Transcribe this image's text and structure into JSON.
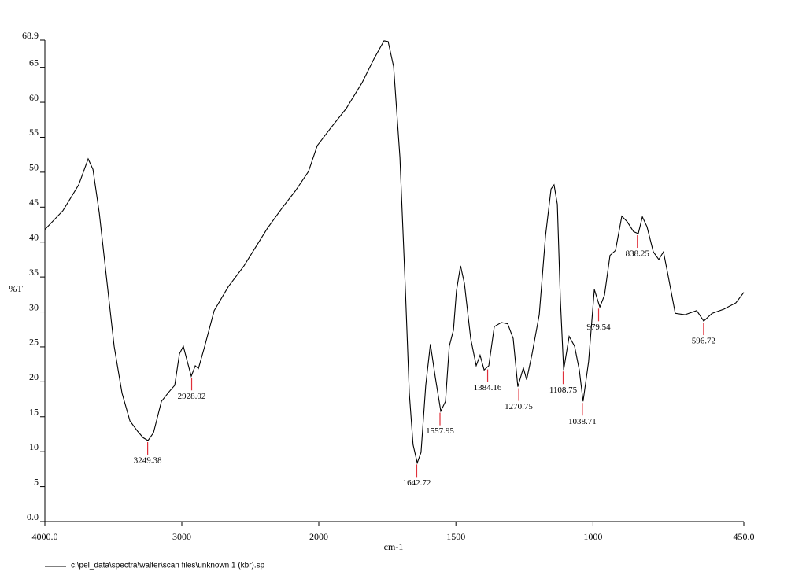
{
  "chart_data": {
    "type": "line",
    "x_label": "cm-1",
    "y_label": "%T",
    "footer": "c:\\pel_data\\spectra\\walter\\scan files\\unknown 1 (kbr).sp",
    "xlim": [
      4000,
      450
    ],
    "x_scale_break": 2000,
    "xticks": [
      {
        "value": 4000,
        "label": "4000.0"
      },
      3000,
      2000,
      1500,
      1000,
      {
        "value": 450,
        "label": "450.0"
      }
    ],
    "ylim": [
      0,
      68.9
    ],
    "yticks": [
      {
        "value": 0,
        "label": "0.0"
      },
      5,
      10,
      15,
      20,
      25,
      30,
      35,
      40,
      45,
      50,
      55,
      60,
      65,
      68.9
    ],
    "series": [
      {
        "color": "#000000",
        "x": [
          4000,
          3868,
          3753,
          3684,
          3649,
          3603,
          3552,
          3494,
          3437,
          3379,
          3322,
          3282,
          3247,
          3207,
          3149,
          3092,
          3052,
          3017,
          2989,
          2960,
          2931,
          2902,
          2879,
          2833,
          2764,
          2661,
          2546,
          2374,
          2259,
          2172,
          2075,
          2011,
          1957,
          1900,
          1842,
          1799,
          1762,
          1747,
          1727,
          1704,
          1684,
          1670,
          1656,
          1641,
          1627,
          1610,
          1593,
          1575,
          1555,
          1538,
          1524,
          1509,
          1498,
          1483,
          1469,
          1446,
          1426,
          1412,
          1397,
          1380,
          1360,
          1334,
          1311,
          1291,
          1274,
          1254,
          1242,
          1222,
          1196,
          1173,
          1153,
          1142,
          1130,
          1119,
          1107,
          1087,
          1067,
          1050,
          1036,
          1016,
          995,
          975,
          958,
          938,
          918,
          895,
          875,
          852,
          835,
          820,
          803,
          780,
          760,
          743,
          729,
          700,
          665,
          622,
          596,
          566,
          523,
          479,
          450
        ],
        "values": [
          41.8,
          44.5,
          48.2,
          51.9,
          50.4,
          44.2,
          35.2,
          25.1,
          18.4,
          14.4,
          12.9,
          12.0,
          11.6,
          12.7,
          17.2,
          18.6,
          19.5,
          24.0,
          25.1,
          22.9,
          20.8,
          22.3,
          21.9,
          25.1,
          30.2,
          33.6,
          36.6,
          42.0,
          45.1,
          47.3,
          50.1,
          53.8,
          56.3,
          59.1,
          62.8,
          66.2,
          68.8,
          68.7,
          65.1,
          52.1,
          33.0,
          18.4,
          11.0,
          8.4,
          9.9,
          19.5,
          25.4,
          20.6,
          15.8,
          17.2,
          25.1,
          27.4,
          33.0,
          36.6,
          34.1,
          26.2,
          22.3,
          23.8,
          21.7,
          22.3,
          27.9,
          28.5,
          28.3,
          26.2,
          19.3,
          22.0,
          20.3,
          24.0,
          29.6,
          40.9,
          47.6,
          48.2,
          45.4,
          31.9,
          21.7,
          26.5,
          25.1,
          21.7,
          17.2,
          22.9,
          33.2,
          30.7,
          32.4,
          38.1,
          38.8,
          43.7,
          42.9,
          41.5,
          41.2,
          43.6,
          42.2,
          38.6,
          37.5,
          38.6,
          35.8,
          29.8,
          29.6,
          30.2,
          28.7,
          29.8,
          30.4,
          31.3,
          32.8
        ]
      }
    ],
    "peak_color": "#e0303a",
    "peaks": [
      {
        "x": 3249.38,
        "y": 11.6
      },
      {
        "x": 2928.02,
        "y": 20.8
      },
      {
        "x": 1642.72,
        "y": 8.4
      },
      {
        "x": 1557.95,
        "y": 15.8
      },
      {
        "x": 1384.16,
        "y": 22.0
      },
      {
        "x": 1270.75,
        "y": 19.3
      },
      {
        "x": 1108.75,
        "y": 21.7
      },
      {
        "x": 1038.71,
        "y": 17.2
      },
      {
        "x": 979.54,
        "y": 30.7
      },
      {
        "x": 838.25,
        "y": 41.2
      },
      {
        "x": 596.72,
        "y": 28.7
      }
    ]
  }
}
